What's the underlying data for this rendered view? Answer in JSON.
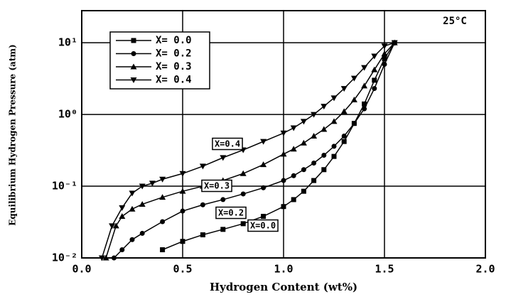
{
  "chart_data": {
    "type": "line",
    "xlabel": "Hydrogen Content (wt%)",
    "ylabel": "Equilibrium Hydrogen Pressure (atm)",
    "annotations": [
      "25°C",
      "X=0.4",
      "X=0.3",
      "X=0.2",
      "X=0.0"
    ],
    "log_y": true,
    "grid": true,
    "legend": "upper left",
    "xlim": [
      0,
      2
    ],
    "ylim": [
      0.01,
      28
    ],
    "xticks": [
      {
        "value": 0,
        "label": "0.0"
      },
      {
        "value": 0.5,
        "label": "0.5"
      },
      {
        "value": 1,
        "label": "1.0"
      },
      {
        "value": 1.5,
        "label": "1.5"
      },
      {
        "value": 2,
        "label": "2.0"
      }
    ],
    "yticks": [
      {
        "value": 0.01,
        "label": "10⁻²"
      },
      {
        "value": 0.1,
        "label": "10⁻¹"
      },
      {
        "value": 1,
        "label": "10⁰"
      },
      {
        "value": 10,
        "label": "10¹"
      }
    ],
    "series": [
      {
        "name": "X= 0.0",
        "color": "#000000",
        "marker": "square",
        "x": [
          0.4,
          0.5,
          0.6,
          0.7,
          0.8,
          0.9,
          1.0,
          1.05,
          1.1,
          1.15,
          1.2,
          1.25,
          1.3,
          1.35,
          1.4,
          1.45,
          1.5,
          1.55
        ],
        "values": [
          0.013,
          0.017,
          0.021,
          0.025,
          0.03,
          0.038,
          0.052,
          0.065,
          0.085,
          0.12,
          0.17,
          0.26,
          0.42,
          0.75,
          1.4,
          3,
          6,
          10
        ]
      },
      {
        "name": "X= 0.2",
        "color": "#000000",
        "marker": "circle",
        "x": [
          0.16,
          0.2,
          0.25,
          0.3,
          0.4,
          0.5,
          0.6,
          0.7,
          0.8,
          0.9,
          1.0,
          1.05,
          1.1,
          1.15,
          1.2,
          1.25,
          1.3,
          1.35,
          1.4,
          1.45,
          1.5,
          1.55
        ],
        "values": [
          0.01,
          0.013,
          0.018,
          0.022,
          0.032,
          0.045,
          0.055,
          0.065,
          0.078,
          0.095,
          0.12,
          0.14,
          0.17,
          0.21,
          0.27,
          0.36,
          0.5,
          0.75,
          1.2,
          2.3,
          5,
          10
        ]
      },
      {
        "name": "X= 0.3",
        "color": "#000000",
        "marker": "triangle-up",
        "x": [
          0.12,
          0.17,
          0.2,
          0.25,
          0.3,
          0.4,
          0.5,
          0.6,
          0.7,
          0.8,
          0.9,
          1.0,
          1.05,
          1.1,
          1.15,
          1.2,
          1.25,
          1.3,
          1.35,
          1.4,
          1.45,
          1.5,
          1.55
        ],
        "values": [
          0.01,
          0.028,
          0.038,
          0.048,
          0.056,
          0.07,
          0.085,
          0.1,
          0.12,
          0.15,
          0.2,
          0.28,
          0.33,
          0.4,
          0.5,
          0.62,
          0.8,
          1.1,
          1.6,
          2.5,
          4.2,
          7,
          10
        ]
      },
      {
        "name": "X= 0.4",
        "color": "#000000",
        "marker": "triangle-down",
        "x": [
          0.1,
          0.15,
          0.2,
          0.25,
          0.3,
          0.35,
          0.4,
          0.5,
          0.6,
          0.7,
          0.8,
          0.9,
          1.0,
          1.05,
          1.1,
          1.15,
          1.2,
          1.25,
          1.3,
          1.35,
          1.4,
          1.45,
          1.5,
          1.55
        ],
        "values": [
          0.01,
          0.028,
          0.05,
          0.08,
          0.1,
          0.11,
          0.125,
          0.15,
          0.19,
          0.25,
          0.32,
          0.42,
          0.55,
          0.65,
          0.8,
          1.0,
          1.3,
          1.7,
          2.3,
          3.2,
          4.5,
          6.5,
          9,
          10
        ]
      }
    ]
  }
}
